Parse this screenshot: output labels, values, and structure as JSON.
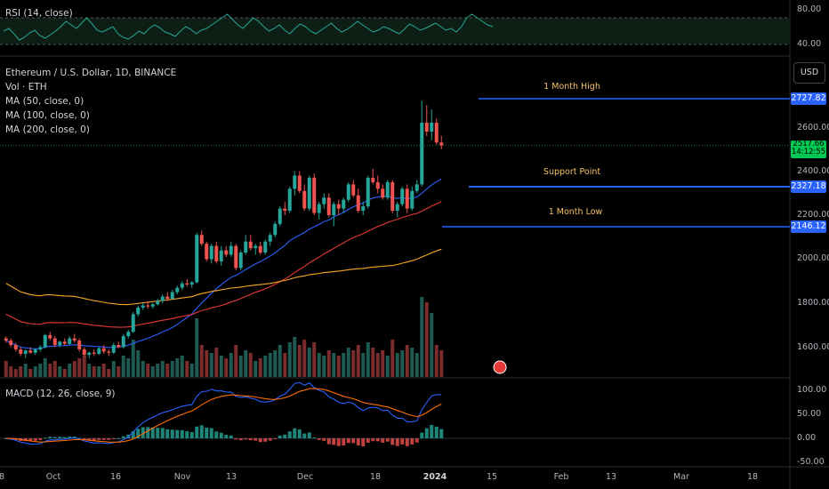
{
  "rsi_pane": {
    "legend": "RSI (14, close)",
    "ticks": [
      "80.00",
      "40.00"
    ],
    "values": [
      55,
      58,
      52,
      45,
      48,
      53,
      56,
      50,
      47,
      51,
      55,
      60,
      66,
      62,
      58,
      64,
      70,
      63,
      56,
      54,
      57,
      60,
      52,
      48,
      46,
      50,
      55,
      52,
      58,
      62,
      59,
      54,
      52,
      49,
      55,
      60,
      57,
      52,
      56,
      58,
      62,
      66,
      70,
      74,
      68,
      62,
      58,
      64,
      70,
      66,
      60,
      55,
      58,
      62,
      56,
      52,
      58,
      63,
      60,
      55,
      52,
      56,
      60,
      64,
      58,
      54,
      57,
      61,
      66,
      62,
      58,
      54,
      56,
      60,
      58,
      55,
      52,
      57,
      63,
      60,
      56,
      58,
      61,
      64,
      60,
      56,
      58,
      54,
      60,
      70,
      74,
      70,
      66,
      62,
      60
    ]
  },
  "main_pane": {
    "legend": {
      "title": "Ethereum / U.S. Dollar, 1D, BINANCE",
      "vol": "Vol · ETH",
      "ma50": "MA (50, close, 0)",
      "ma100": "MA (100, close, 0)",
      "ma200": "MA (200, close, 0)"
    },
    "currency_button": "USD",
    "ticks": [
      "2600.00",
      "2400.00",
      "2200.00",
      "2000.00",
      "1800.00",
      "1600.00"
    ],
    "price_tags": {
      "high": "2727.82",
      "support": "2327.18",
      "low": "2146.12",
      "current_price": "2517.66",
      "countdown": "14:12:55"
    },
    "annotations": {
      "high": "1 Month High",
      "support": "Support Point",
      "low": "1 Month Low"
    },
    "colors": {
      "up": "#26a69a",
      "down": "#ef5350",
      "ma50": "#2962ff",
      "ma100": "#e53935",
      "ma200": "#f9a825",
      "annotation": "#2962ff"
    }
  },
  "macd_pane": {
    "legend": "MACD (12, 26, close, 9)",
    "ticks": [
      "100.00",
      "50.00",
      "0.00",
      "-50.00"
    ]
  },
  "x_axis": {
    "ticks": [
      "8",
      "Oct",
      "16",
      "Nov",
      "13",
      "Dec",
      "18",
      "2024",
      "15",
      "Feb",
      "13",
      "Mar",
      "18"
    ]
  },
  "chart_data": {
    "type": "line",
    "title": "Ethereum / U.S. Dollar, 1D, BINANCE",
    "series": [
      {
        "name": "Ethereum / U.S. Dollar",
        "type": "candlestick",
        "ohlc": [
          [
            1640,
            1650,
            1620,
            1630
          ],
          [
            1630,
            1640,
            1600,
            1610
          ],
          [
            1610,
            1620,
            1580,
            1590
          ],
          [
            1590,
            1600,
            1560,
            1570
          ],
          [
            1570,
            1590,
            1550,
            1585
          ],
          [
            1585,
            1600,
            1570,
            1575
          ],
          [
            1575,
            1595,
            1565,
            1590
          ],
          [
            1590,
            1610,
            1580,
            1600
          ],
          [
            1600,
            1660,
            1595,
            1655
          ],
          [
            1655,
            1670,
            1630,
            1640
          ],
          [
            1640,
            1650,
            1600,
            1610
          ],
          [
            1610,
            1630,
            1600,
            1625
          ],
          [
            1625,
            1640,
            1610,
            1615
          ],
          [
            1615,
            1650,
            1610,
            1640
          ],
          [
            1640,
            1660,
            1620,
            1630
          ],
          [
            1630,
            1640,
            1580,
            1590
          ],
          [
            1590,
            1600,
            1560,
            1565
          ],
          [
            1565,
            1580,
            1550,
            1575
          ],
          [
            1575,
            1590,
            1560,
            1570
          ],
          [
            1570,
            1600,
            1565,
            1595
          ],
          [
            1595,
            1610,
            1570,
            1580
          ],
          [
            1580,
            1590,
            1560,
            1575
          ],
          [
            1575,
            1620,
            1570,
            1610
          ],
          [
            1610,
            1625,
            1595,
            1600
          ],
          [
            1600,
            1660,
            1595,
            1650
          ],
          [
            1650,
            1680,
            1640,
            1670
          ],
          [
            1670,
            1760,
            1665,
            1750
          ],
          [
            1750,
            1790,
            1740,
            1780
          ],
          [
            1780,
            1800,
            1770,
            1790
          ],
          [
            1790,
            1810,
            1775,
            1785
          ],
          [
            1785,
            1800,
            1775,
            1795
          ],
          [
            1795,
            1820,
            1790,
            1810
          ],
          [
            1810,
            1840,
            1800,
            1830
          ],
          [
            1830,
            1850,
            1810,
            1820
          ],
          [
            1820,
            1860,
            1815,
            1850
          ],
          [
            1850,
            1880,
            1840,
            1870
          ],
          [
            1870,
            1900,
            1860,
            1890
          ],
          [
            1890,
            1910,
            1875,
            1885
          ],
          [
            1885,
            1900,
            1870,
            1895
          ],
          [
            1895,
            2120,
            1890,
            2110
          ],
          [
            2110,
            2130,
            2060,
            2070
          ],
          [
            2070,
            2080,
            1990,
            2000
          ],
          [
            2000,
            2070,
            1980,
            2060
          ],
          [
            2060,
            2080,
            1980,
            1990
          ],
          [
            1990,
            2060,
            1970,
            2040
          ],
          [
            2040,
            2060,
            2010,
            2020
          ],
          [
            2020,
            2080,
            2010,
            2060
          ],
          [
            2060,
            2070,
            1950,
            1960
          ],
          [
            1960,
            2040,
            1950,
            2030
          ],
          [
            2030,
            2110,
            2020,
            2080
          ],
          [
            2080,
            2110,
            2040,
            2050
          ],
          [
            2050,
            2070,
            2020,
            2060
          ],
          [
            2060,
            2080,
            2020,
            2030
          ],
          [
            2030,
            2090,
            2020,
            2080
          ],
          [
            2080,
            2120,
            2060,
            2110
          ],
          [
            2110,
            2170,
            2100,
            2160
          ],
          [
            2160,
            2240,
            2150,
            2230
          ],
          [
            2230,
            2260,
            2200,
            2220
          ],
          [
            2220,
            2330,
            2210,
            2320
          ],
          [
            2320,
            2400,
            2290,
            2380
          ],
          [
            2380,
            2400,
            2300,
            2310
          ],
          [
            2310,
            2340,
            2220,
            2230
          ],
          [
            2230,
            2380,
            2220,
            2370
          ],
          [
            2370,
            2390,
            2200,
            2210
          ],
          [
            2210,
            2260,
            2180,
            2250
          ],
          [
            2250,
            2300,
            2230,
            2280
          ],
          [
            2280,
            2300,
            2190,
            2200
          ],
          [
            2200,
            2260,
            2150,
            2250
          ],
          [
            2250,
            2270,
            2200,
            2230
          ],
          [
            2230,
            2280,
            2210,
            2270
          ],
          [
            2270,
            2350,
            2260,
            2340
          ],
          [
            2340,
            2360,
            2280,
            2290
          ],
          [
            2290,
            2320,
            2210,
            2220
          ],
          [
            2220,
            2260,
            2200,
            2240
          ],
          [
            2240,
            2380,
            2230,
            2370
          ],
          [
            2370,
            2410,
            2340,
            2350
          ],
          [
            2350,
            2380,
            2300,
            2320
          ],
          [
            2320,
            2340,
            2270,
            2280
          ],
          [
            2280,
            2360,
            2270,
            2350
          ],
          [
            2350,
            2360,
            2210,
            2220
          ],
          [
            2220,
            2260,
            2190,
            2250
          ],
          [
            2250,
            2330,
            2240,
            2320
          ],
          [
            2320,
            2340,
            2210,
            2230
          ],
          [
            2230,
            2330,
            2220,
            2310
          ],
          [
            2310,
            2360,
            2300,
            2340
          ],
          [
            2340,
            2720,
            2330,
            2620
          ],
          [
            2620,
            2700,
            2560,
            2580
          ],
          [
            2580,
            2680,
            2540,
            2620
          ],
          [
            2620,
            2640,
            2520,
            2530
          ],
          [
            2530,
            2560,
            2500,
            2517
          ]
        ]
      },
      {
        "name": "Vol · ETH",
        "type": "volume",
        "values": [
          6,
          4,
          3,
          4,
          5,
          3,
          4,
          5,
          7,
          5,
          6,
          4,
          3,
          5,
          6,
          7,
          8,
          5,
          4,
          4,
          5,
          3,
          6,
          4,
          8,
          7,
          14,
          10,
          6,
          5,
          4,
          5,
          6,
          5,
          6,
          7,
          8,
          6,
          5,
          22,
          12,
          10,
          9,
          11,
          8,
          7,
          9,
          12,
          8,
          10,
          9,
          6,
          7,
          8,
          9,
          10,
          12,
          9,
          13,
          15,
          12,
          14,
          11,
          13,
          9,
          8,
          10,
          9,
          8,
          9,
          11,
          10,
          12,
          9,
          13,
          11,
          9,
          10,
          8,
          14,
          9,
          10,
          12,
          11,
          9,
          30,
          28,
          24,
          12,
          10
        ]
      },
      {
        "name": "MA (50, close, 0)",
        "values": []
      },
      {
        "name": "MA (100, close, 0)",
        "values": []
      },
      {
        "name": "MA (200, close, 0)",
        "values": []
      },
      {
        "name": "MACD (12, 26, close, 9)",
        "values": []
      }
    ],
    "price_levels": [
      {
        "label": "1 Month High",
        "value": 2727.82
      },
      {
        "label": "Support Point",
        "value": 2327.18
      },
      {
        "label": "1 Month Low",
        "value": 2146.12
      }
    ],
    "ylim": [
      1500,
      2800
    ]
  }
}
